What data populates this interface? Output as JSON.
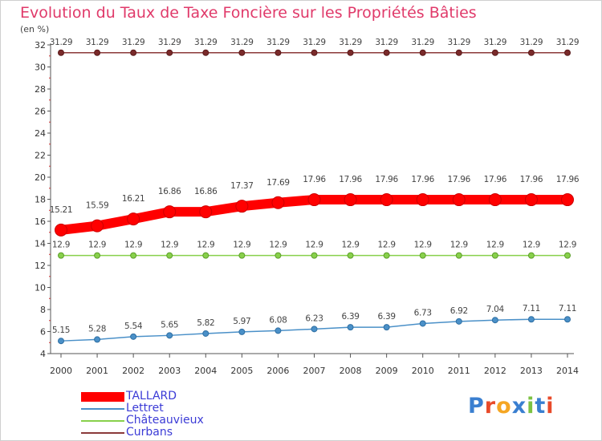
{
  "chart_data": {
    "type": "line",
    "title": "Evolution du Taux de Taxe Foncière sur les Propriétés Bâties",
    "ylabel": "(en %)",
    "xlabel": "",
    "ylim": [
      4,
      32
    ],
    "yticks": [
      4,
      6,
      8,
      10,
      12,
      14,
      16,
      18,
      20,
      22,
      24,
      26,
      28,
      30,
      32
    ],
    "grid": false,
    "legend": "bottom-left",
    "x": [
      "2000",
      "2001",
      "2002",
      "2003",
      "2004",
      "2005",
      "2006",
      "2007",
      "2008",
      "2009",
      "2010",
      "2011",
      "2012",
      "2013",
      "2014"
    ],
    "series": [
      {
        "name": "TALLARD",
        "color": "#ff0000",
        "values": [
          15.21,
          15.59,
          16.21,
          16.86,
          16.86,
          17.37,
          17.69,
          17.96,
          17.96,
          17.96,
          17.96,
          17.96,
          17.96,
          17.96,
          17.96
        ],
        "labels": [
          "15.21",
          "15.59",
          "16.21",
          "16.86",
          "16.86",
          "17.37",
          "17.69",
          "17.96",
          "17.96",
          "17.96",
          "17.96",
          "17.96",
          "17.96",
          "17.96",
          "17.96"
        ]
      },
      {
        "name": "Lettret",
        "color": "#4a90c8",
        "values": [
          5.15,
          5.28,
          5.54,
          5.65,
          5.82,
          5.97,
          6.08,
          6.23,
          6.39,
          6.39,
          6.73,
          6.92,
          7.04,
          7.11,
          7.11
        ],
        "labels": [
          "5.15",
          "5.28",
          "5.54",
          "5.65",
          "5.82",
          "5.97",
          "6.08",
          "6.23",
          "6.39",
          "6.39",
          "6.73",
          "6.92",
          "7.04",
          "7.11",
          "7.11"
        ]
      },
      {
        "name": "Châteauvieux",
        "color": "#88d04b",
        "values": [
          12.9,
          12.9,
          12.9,
          12.9,
          12.9,
          12.9,
          12.9,
          12.9,
          12.9,
          12.9,
          12.9,
          12.9,
          12.9,
          12.9,
          12.9
        ],
        "labels": [
          "12.9",
          "12.9",
          "12.9",
          "12.9",
          "12.9",
          "12.9",
          "12.9",
          "12.9",
          "12.9",
          "12.9",
          "12.9",
          "12.9",
          "12.9",
          "12.9",
          "12.9"
        ]
      },
      {
        "name": "Curbans",
        "color": "#8b3a3a",
        "values": [
          31.29,
          31.29,
          31.29,
          31.29,
          31.29,
          31.29,
          31.29,
          31.29,
          31.29,
          31.29,
          31.29,
          31.29,
          31.29,
          31.29,
          31.29
        ],
        "labels": [
          "31.29",
          "31.29",
          "31.29",
          "31.29",
          "31.29",
          "31.29",
          "31.29",
          "31.29",
          "31.29",
          "31.29",
          "31.29",
          "31.29",
          "31.29",
          "31.29",
          "31.29"
        ]
      }
    ]
  },
  "logo": {
    "text": "Proxiti"
  }
}
